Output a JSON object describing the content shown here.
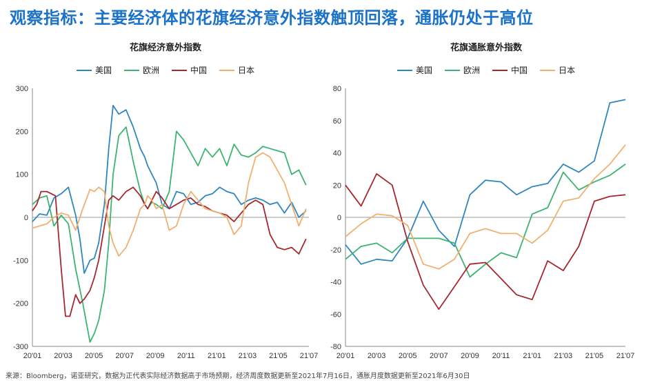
{
  "headline": "观察指标：主要经济体的花旗经济意外指数触顶回落，通胀仍处于高位",
  "source": "来源：Bloomberg，诺亚研究，数据为正代表实际经济数据高于市场预期，经济周度数据更新至2021年7月16日，通胀月度数据更新至2021年6月30日",
  "colors": {
    "美国": "#2e86c1",
    "欧洲": "#3cb371",
    "中国": "#a5272d",
    "日本": "#f0b070"
  },
  "chart_data": [
    {
      "type": "line",
      "title": "花旗经济意外指数",
      "legend_placement": "top",
      "grid": false,
      "x_tick_labels": [
        "20'01",
        "20'03",
        "20'05",
        "20'07",
        "20'09",
        "20'11",
        "21'01",
        "21'03",
        "21'05",
        "21'07"
      ],
      "y_ticks": [
        -300,
        -200,
        -100,
        0,
        100,
        200,
        300
      ],
      "ylim": [
        -300,
        300
      ],
      "x_unit": "month index (0 = 20'01)",
      "xlim": [
        0,
        19.2
      ],
      "series": [
        {
          "name": "美国",
          "x": [
            0,
            0.5,
            1,
            1.5,
            2,
            2.5,
            3,
            3.3,
            3.6,
            4,
            4.3,
            4.6,
            5,
            5.3,
            5.6,
            6,
            6.5,
            7,
            7.5,
            7.8,
            8,
            8.3,
            8.6,
            9,
            9.5,
            10,
            10.5,
            11,
            11.5,
            12,
            12.5,
            13,
            13.5,
            14,
            14.5,
            15,
            15.5,
            16,
            16.5,
            17,
            17.5,
            18,
            18.5,
            19
          ],
          "values": [
            -10,
            8,
            5,
            45,
            55,
            70,
            5,
            -50,
            -130,
            -100,
            -95,
            -60,
            30,
            160,
            260,
            240,
            250,
            210,
            160,
            140,
            120,
            100,
            80,
            30,
            20,
            60,
            55,
            30,
            35,
            50,
            55,
            70,
            60,
            55,
            30,
            40,
            45,
            40,
            30,
            35,
            10,
            35,
            0,
            15
          ]
        },
        {
          "name": "欧洲",
          "x": [
            0,
            0.5,
            1,
            1.5,
            2,
            2.5,
            3,
            3.5,
            4,
            4.3,
            4.6,
            5,
            5.3,
            5.6,
            6,
            6.5,
            7,
            7.5,
            7.8,
            8,
            8.3,
            8.6,
            9,
            9.5,
            10,
            10.5,
            11,
            11.5,
            12,
            12.5,
            13,
            13.5,
            14,
            14.5,
            15,
            15.5,
            16,
            16.5,
            17,
            17.5,
            18,
            18.5,
            19
          ],
          "values": [
            30,
            45,
            50,
            -20,
            5,
            -15,
            -120,
            -200,
            -290,
            -270,
            -240,
            -170,
            -60,
            100,
            190,
            210,
            130,
            60,
            30,
            20,
            35,
            30,
            20,
            60,
            200,
            180,
            150,
            120,
            160,
            140,
            160,
            120,
            170,
            145,
            140,
            150,
            165,
            160,
            155,
            150,
            100,
            110,
            75
          ]
        },
        {
          "name": "中国",
          "x": [
            0,
            0.3,
            0.6,
            1,
            1.3,
            1.6,
            2,
            2.3,
            2.6,
            3,
            3.3,
            3.6,
            4,
            4.3,
            4.6,
            5,
            5.3,
            5.6,
            6,
            6.5,
            7,
            7.5,
            7.8,
            8,
            8.3,
            8.6,
            9,
            9.5,
            10,
            10.5,
            11,
            11.5,
            12,
            12.5,
            13,
            13.5,
            14,
            14.5,
            15,
            15.5,
            16,
            16.5,
            17,
            17.5,
            18,
            18.5,
            19
          ],
          "values": [
            15,
            30,
            60,
            60,
            55,
            50,
            -120,
            -230,
            -230,
            -180,
            -200,
            -190,
            -170,
            -140,
            -100,
            -20,
            40,
            50,
            40,
            60,
            70,
            50,
            30,
            20,
            40,
            60,
            45,
            20,
            30,
            40,
            45,
            30,
            25,
            15,
            10,
            5,
            -10,
            10,
            30,
            40,
            30,
            -40,
            -70,
            -75,
            -70,
            -85,
            -50
          ]
        },
        {
          "name": "日本",
          "x": [
            0,
            0.5,
            1,
            1.5,
            2,
            2.5,
            3,
            3.5,
            4,
            4.3,
            4.6,
            5,
            5.3,
            5.6,
            6,
            6.5,
            7,
            7.5,
            7.8,
            8,
            8.3,
            8.6,
            9,
            9.5,
            10,
            10.5,
            11,
            11.5,
            12,
            12.5,
            13,
            13.5,
            14,
            14.5,
            15,
            15.5,
            16,
            16.5,
            17,
            17.5,
            18,
            18.5,
            19
          ],
          "values": [
            -25,
            -20,
            -15,
            0,
            10,
            5,
            -30,
            20,
            65,
            60,
            70,
            60,
            -20,
            -60,
            -90,
            -70,
            -30,
            20,
            30,
            50,
            40,
            20,
            30,
            -30,
            -20,
            30,
            60,
            40,
            20,
            15,
            10,
            0,
            -40,
            -20,
            80,
            140,
            150,
            140,
            110,
            80,
            30,
            -20,
            20
          ]
        }
      ]
    },
    {
      "type": "line",
      "title": "花旗通胀意外指数",
      "legend_placement": "top",
      "grid": false,
      "x_tick_labels": [
        "20'01",
        "20'03",
        "20'05",
        "20'07",
        "20'09",
        "20'11",
        "21'01",
        "21'03",
        "21'05",
        "21'07"
      ],
      "y_ticks": [
        -80,
        -60,
        -40,
        -20,
        0,
        20,
        40,
        60,
        80
      ],
      "ylim": [
        -80,
        80
      ],
      "x_unit": "month index (0 = 20'01)",
      "xlim": [
        0,
        18
      ],
      "series": [
        {
          "name": "美国",
          "x": [
            0,
            1,
            2,
            3,
            4,
            5,
            6,
            7,
            8,
            9,
            10,
            11,
            12,
            13,
            14,
            15,
            16,
            17,
            18
          ],
          "values": [
            -17,
            -29,
            -26,
            -27,
            -13,
            10,
            -8,
            -18,
            14,
            23,
            22,
            14,
            19,
            21,
            33,
            28,
            35,
            71,
            73
          ]
        },
        {
          "name": "欧洲",
          "x": [
            0,
            1,
            2,
            3,
            4,
            5,
            6,
            7,
            8,
            9,
            10,
            11,
            12,
            13,
            14,
            15,
            16,
            17,
            18
          ],
          "values": [
            -26,
            -18,
            -16,
            -22,
            -13,
            -13,
            -13,
            -16,
            -37,
            -29,
            -22,
            -25,
            2,
            6,
            28,
            17,
            22,
            26,
            33
          ]
        },
        {
          "name": "中国",
          "x": [
            0,
            1,
            2,
            3,
            4,
            5,
            6,
            7,
            8,
            9,
            10,
            11,
            12,
            13,
            14,
            15,
            16,
            17,
            18
          ],
          "values": [
            20,
            7,
            27,
            20,
            -15,
            -42,
            -57,
            -43,
            -29,
            -28,
            -38,
            -48,
            -51,
            -27,
            -33,
            -18,
            10,
            13,
            14
          ]
        },
        {
          "name": "日本",
          "x": [
            0,
            1,
            2,
            3,
            4,
            5,
            6,
            7,
            8,
            9,
            10,
            11,
            12,
            13,
            14,
            15,
            16,
            17,
            18
          ],
          "values": [
            -12,
            -4,
            2,
            1,
            -5,
            -29,
            -32,
            -26,
            -10,
            -7,
            -10,
            -10,
            -16,
            -8,
            10,
            12,
            24,
            33,
            45
          ]
        }
      ]
    }
  ]
}
